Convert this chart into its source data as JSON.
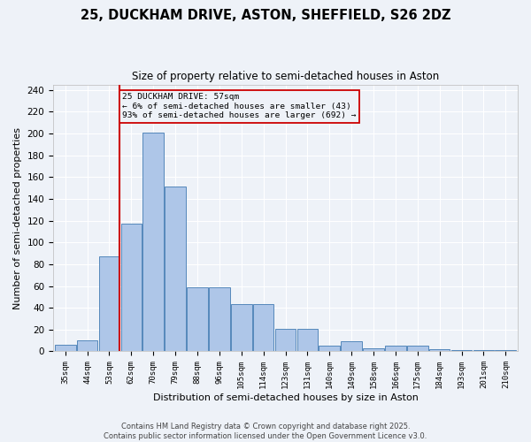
{
  "title1": "25, DUCKHAM DRIVE, ASTON, SHEFFIELD, S26 2DZ",
  "title2": "Size of property relative to semi-detached houses in Aston",
  "xlabel": "Distribution of semi-detached houses by size in Aston",
  "ylabel": "Number of semi-detached properties",
  "bins": [
    "35sqm",
    "44sqm",
    "53sqm",
    "62sqm",
    "70sqm",
    "79sqm",
    "88sqm",
    "96sqm",
    "105sqm",
    "114sqm",
    "123sqm",
    "131sqm",
    "140sqm",
    "149sqm",
    "158sqm",
    "166sqm",
    "175sqm",
    "184sqm",
    "193sqm",
    "201sqm",
    "210sqm"
  ],
  "values": [
    6,
    10,
    87,
    117,
    201,
    151,
    59,
    59,
    43,
    43,
    21,
    21,
    5,
    9,
    3,
    5,
    5,
    2,
    1,
    1,
    1
  ],
  "bar_color": "#aec6e8",
  "bar_edge_color": "#5588bb",
  "vline_color": "#cc0000",
  "vline_pos": 2,
  "annotation_title": "25 DUCKHAM DRIVE: 57sqm",
  "annotation_line1": "← 6% of semi-detached houses are smaller (43)",
  "annotation_line2": "93% of semi-detached houses are larger (692) →",
  "annotation_box_color": "#cc0000",
  "ylim": [
    0,
    245
  ],
  "yticks": [
    0,
    20,
    40,
    60,
    80,
    100,
    120,
    140,
    160,
    180,
    200,
    220,
    240
  ],
  "footer1": "Contains HM Land Registry data © Crown copyright and database right 2025.",
  "footer2": "Contains public sector information licensed under the Open Government Licence v3.0.",
  "bg_color": "#eef2f8"
}
